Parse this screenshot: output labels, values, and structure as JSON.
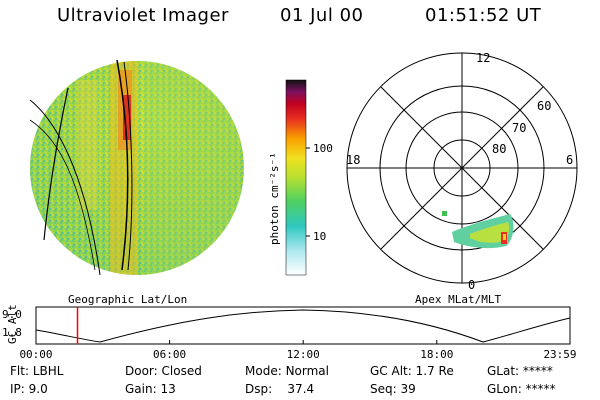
{
  "header": {
    "title": "Ultraviolet Imager",
    "date": "01 Jul 00",
    "time": "01:51:52 UT"
  },
  "left_image": {
    "label": "Geographic Lat/Lon"
  },
  "right_image": {
    "label": "Apex MLat/MLT"
  },
  "colorbar": {
    "unit_label": "photon cm⁻²s⁻¹",
    "ticks": [
      "100",
      "10"
    ],
    "tick_values": [
      100,
      10
    ]
  },
  "polar_plot": {
    "mlt_labels": {
      "top": "12",
      "left": "18",
      "right": "6",
      "bottom": "0"
    },
    "lat_labels": [
      "60",
      "70",
      "80"
    ],
    "lat_values": [
      60,
      70,
      80
    ]
  },
  "altitude_plot": {
    "ylabel": "GC Alt",
    "yticks": [
      "9.0",
      "1.8"
    ],
    "yvalues": [
      9.0,
      1.8
    ],
    "xticks": [
      "00:00",
      "06:00",
      "12:00",
      "18:00",
      "23:59"
    ],
    "current_time_hours": 1.864
  },
  "info": {
    "flt": {
      "label": "Flt:",
      "value": "LBHL"
    },
    "ip": {
      "label": "IP:",
      "value": "9.0"
    },
    "door": {
      "label": "Door:",
      "value": "Closed"
    },
    "gain": {
      "label": "Gain:",
      "value": "13"
    },
    "mode": {
      "label": "Mode:",
      "value": "Normal"
    },
    "dsp": {
      "label": "Dsp:",
      "value": "37.4"
    },
    "gcalt": {
      "label": "GC Alt:",
      "value": "1.7 Re"
    },
    "seq": {
      "label": "Seq:",
      "value": "39"
    },
    "glat": {
      "label": "GLat:",
      "value": "*****"
    },
    "glon": {
      "label": "GLon:",
      "value": "*****"
    }
  },
  "colors": {
    "background": "#ffffff",
    "line": "#000000",
    "marker": "#ff0000"
  }
}
